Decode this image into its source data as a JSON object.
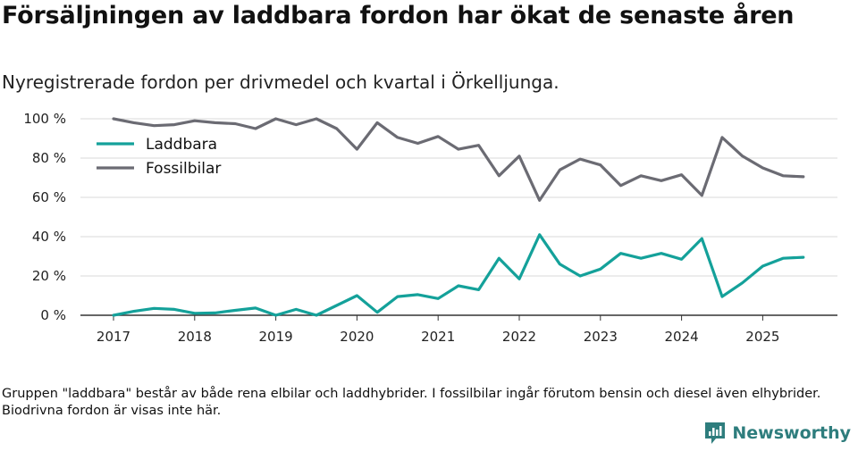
{
  "title": "Försäljningen av laddbara fordon har ökat de senaste åren",
  "subtitle": "Nyregistrerade fordon per drivmedel och kvartal i Örkelljunga.",
  "footnote": "Gruppen \"laddbara\" består av både rena elbilar och laddhybrider. I fossilbilar ingår förutom bensin och diesel även elhybrider. Biodrivna fordon är visas inte här.",
  "brand": "Newsworthy",
  "colors": {
    "laddbara": "#14a19a",
    "fossil": "#6b6b73",
    "grid": "#d9d9d9",
    "axis": "#333333",
    "brand": "#2e7d7d"
  },
  "chart_data": {
    "type": "line",
    "title": "Försäljningen av laddbara fordon har ökat de senaste åren",
    "xlabel": "",
    "ylabel": "",
    "x_start_year": 2017,
    "quarters_per_year": 4,
    "x_ticks": [
      "2017",
      "2018",
      "2019",
      "2020",
      "2021",
      "2022",
      "2023",
      "2024",
      "2025"
    ],
    "y_ticks": [
      "0 %",
      "20 %",
      "40 %",
      "60 %",
      "80 %",
      "100 %"
    ],
    "ylim": [
      0,
      100
    ],
    "legend_position": "top-left",
    "series": [
      {
        "name": "Laddbara",
        "key": "laddbara",
        "values": [
          0,
          2,
          3.5,
          3,
          1,
          1.2,
          2.5,
          3.7,
          0,
          3,
          0,
          5,
          10,
          1.5,
          9.5,
          10.5,
          8.5,
          15,
          13,
          29,
          18.5,
          41,
          26,
          20,
          23.5,
          31.5,
          29,
          31.5,
          28.5,
          39,
          9.5,
          16.5,
          25,
          29,
          29.5
        ]
      },
      {
        "name": "Fossilbilar",
        "key": "fossil",
        "values": [
          100,
          98,
          96.5,
          97,
          99,
          98,
          97.5,
          95,
          100,
          97,
          100,
          95,
          84.5,
          98,
          90.5,
          87.5,
          91,
          84.5,
          86.5,
          71,
          81,
          58.5,
          74,
          79.5,
          76.5,
          66,
          71,
          68.5,
          71.5,
          61,
          90.5,
          81,
          75,
          71,
          70.5
        ]
      }
    ]
  }
}
